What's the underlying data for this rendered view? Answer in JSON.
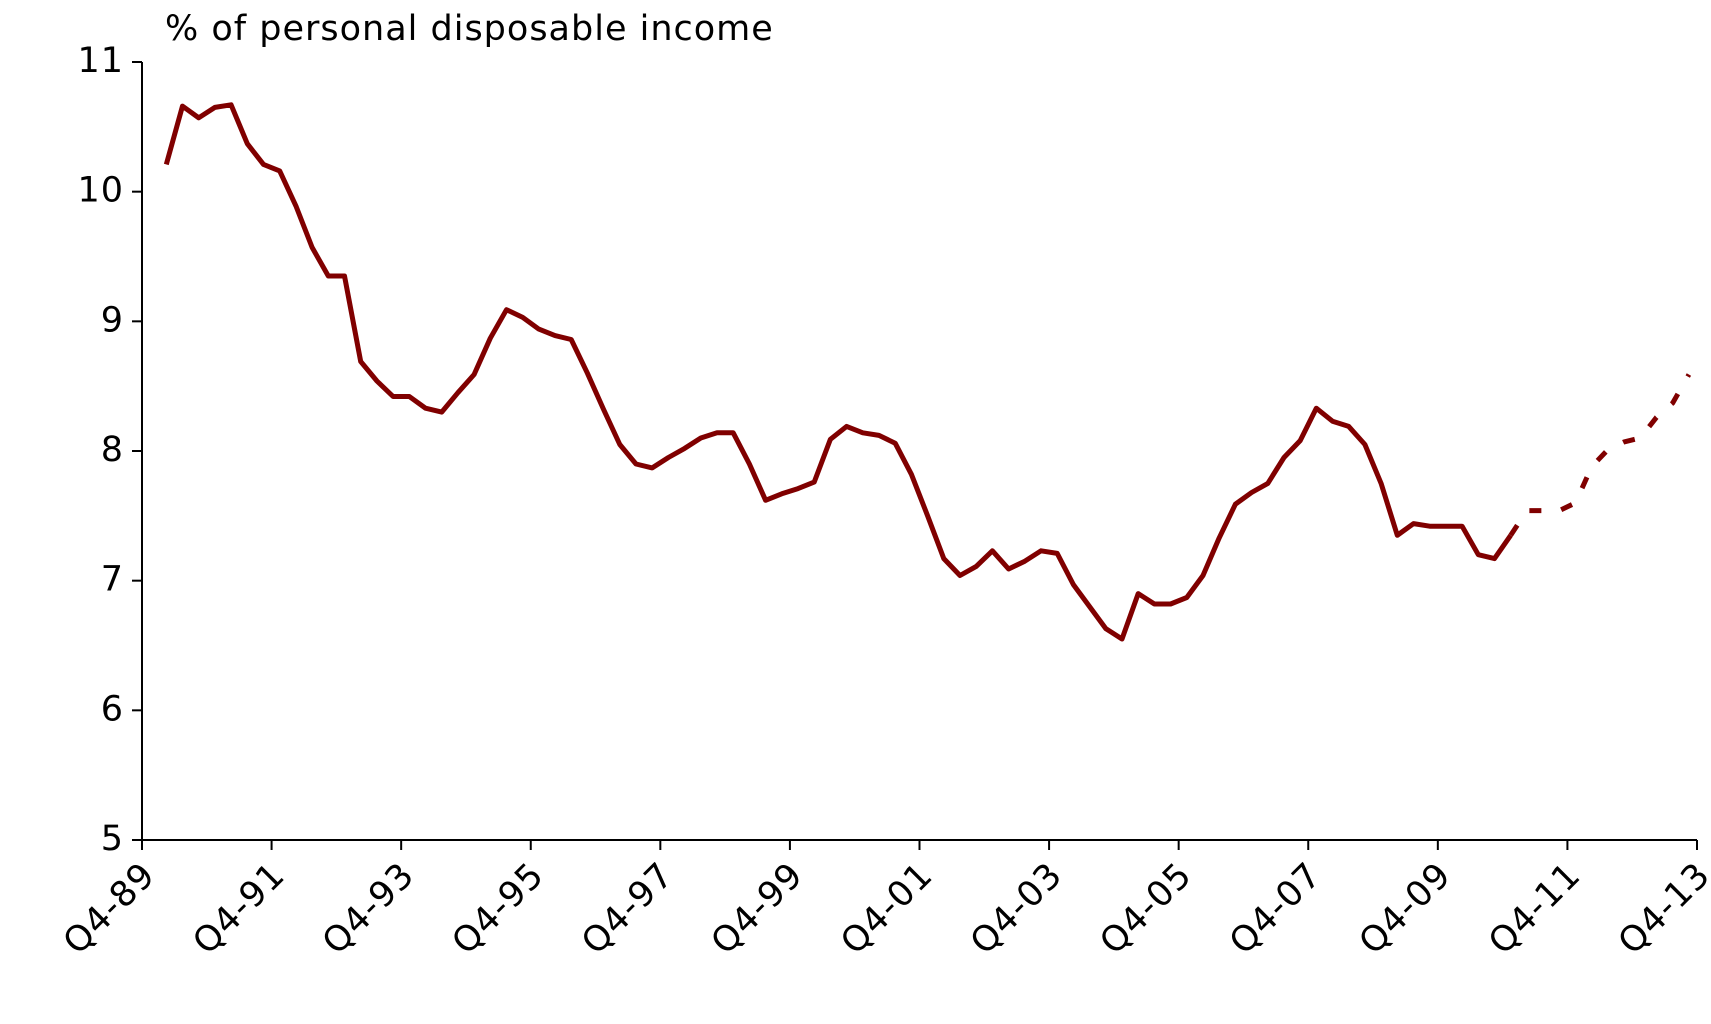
{
  "chart_data": {
    "type": "line",
    "title": "% of personal disposable income",
    "categories": [
      "Q4-89",
      null,
      null,
      null,
      null,
      null,
      null,
      null,
      "Q4-91",
      null,
      null,
      null,
      null,
      null,
      null,
      null,
      "Q4-93",
      null,
      null,
      null,
      null,
      null,
      null,
      null,
      "Q4-95",
      null,
      null,
      null,
      null,
      null,
      null,
      null,
      "Q4-97",
      null,
      null,
      null,
      null,
      null,
      null,
      null,
      "Q4-99",
      null,
      null,
      null,
      null,
      null,
      null,
      null,
      "Q4-01",
      null,
      null,
      null,
      null,
      null,
      null,
      null,
      "Q4-03",
      null,
      null,
      null,
      null,
      null,
      null,
      null,
      "Q4-05",
      null,
      null,
      null,
      null,
      null,
      null,
      null,
      "Q4-07",
      null,
      null,
      null,
      null,
      null,
      null,
      null,
      "Q4-09",
      null,
      null,
      null,
      null,
      null,
      null,
      null,
      "Q4-11",
      null,
      null,
      null,
      null,
      null,
      null,
      null,
      "Q4-13"
    ],
    "series": [
      {
        "color": "#800000",
        "style": "solid",
        "values": [
          null,
          10.21,
          10.66,
          10.57,
          10.65,
          10.67,
          10.37,
          10.21,
          10.16,
          9.89,
          9.57,
          9.35,
          9.35,
          8.69,
          8.54,
          8.42,
          8.42,
          8.33,
          8.3,
          8.45,
          8.59,
          8.87,
          9.09,
          9.03,
          8.94,
          8.89,
          8.86,
          8.6,
          8.32,
          8.05,
          7.9,
          7.87,
          7.95,
          8.02,
          8.1,
          8.14,
          8.14,
          7.9,
          7.62,
          7.67,
          7.71,
          7.76,
          8.09,
          8.19,
          8.14,
          8.12,
          8.06,
          7.82,
          7.5,
          7.17,
          7.04,
          7.11,
          7.23,
          7.09,
          7.15,
          7.23,
          7.21,
          6.97,
          6.8,
          6.63,
          6.55,
          6.9,
          6.82,
          6.82,
          6.87,
          7.04,
          7.33,
          7.59,
          7.68,
          7.75,
          7.95,
          8.08,
          8.33,
          8.23,
          8.19,
          8.05,
          7.75,
          7.35,
          7.44,
          7.42,
          7.42,
          7.42,
          7.2,
          7.17,
          7.35,
          null,
          null,
          null,
          null,
          null,
          null,
          null,
          null,
          null,
          null,
          null,
          null
        ]
      },
      {
        "color": "#800000",
        "style": "dotted",
        "values": [
          null,
          null,
          null,
          null,
          null,
          null,
          null,
          null,
          null,
          null,
          null,
          null,
          null,
          null,
          null,
          null,
          null,
          null,
          null,
          null,
          null,
          null,
          null,
          null,
          null,
          null,
          null,
          null,
          null,
          null,
          null,
          null,
          null,
          null,
          null,
          null,
          null,
          null,
          null,
          null,
          null,
          null,
          null,
          null,
          null,
          null,
          null,
          null,
          null,
          null,
          null,
          null,
          null,
          null,
          null,
          null,
          null,
          null,
          null,
          null,
          null,
          null,
          null,
          null,
          null,
          null,
          null,
          null,
          null,
          null,
          null,
          null,
          null,
          null,
          null,
          null,
          null,
          null,
          null,
          null,
          null,
          null,
          null,
          null,
          7.35,
          7.54,
          7.54,
          7.54,
          7.6,
          7.88,
          8.01,
          8.07,
          8.1,
          8.26,
          8.37,
          8.59,
          null
        ]
      }
    ],
    "ylim": [
      5,
      11
    ],
    "yticks": [
      5,
      6,
      7,
      8,
      9,
      10,
      11
    ],
    "grid": false
  }
}
